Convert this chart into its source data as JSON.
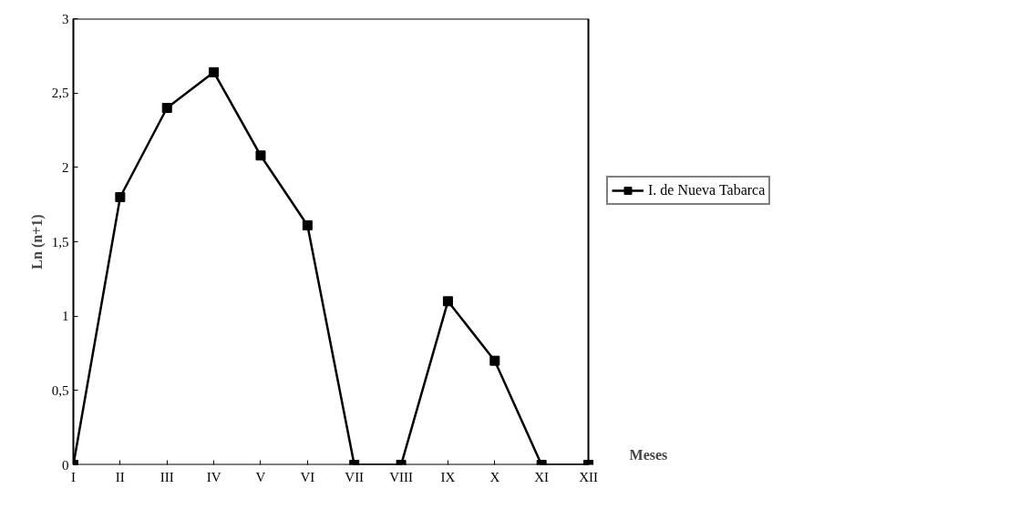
{
  "chart_data": {
    "type": "line",
    "xlabel": "Meses",
    "ylabel": "Ln (n+1)",
    "categories": [
      "I",
      "II",
      "III",
      "IV",
      "V",
      "VI",
      "VII",
      "VIII",
      "IX",
      "X",
      "XI",
      "XII"
    ],
    "series": [
      {
        "name": "I. de Nueva Tabarca",
        "color": "#000000",
        "values": [
          0,
          1.8,
          2.4,
          2.64,
          2.08,
          1.61,
          0,
          0,
          1.1,
          0.7,
          0,
          0
        ]
      }
    ],
    "ylim": [
      0,
      3
    ],
    "yticks": [
      0,
      {
        "value": 0.5,
        "label": "0,5"
      },
      1,
      {
        "value": 1.5,
        "label": "1,5"
      },
      2,
      {
        "value": 2.5,
        "label": "2,5"
      },
      3
    ],
    "grid": false,
    "legend": "right",
    "marker": "square",
    "line_style": "solid"
  }
}
